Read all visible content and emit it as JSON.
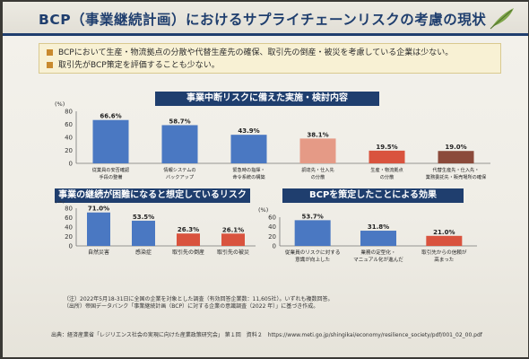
{
  "slide": {
    "title": "BCP（事業継続計画）におけるサプライチェーンリスクの考慮の現状",
    "bullets": [
      "BCPにおいて生産・物流拠点の分散や代替生産先の確保、取引先の倒産・被災を考慮している企業は少ない。",
      "取引先がBCP策定を評価することも少ない。"
    ],
    "notes": [
      "（注）2022年5月18-31日に全国の企業を対象とした調査（有効回答企業数：11,605社）。いずれも複数回答。",
      "（出所）帝国データバンク「事業継続計画（BCP）に対する企業の意識調査（2022 年）」に基づき作成。"
    ],
    "source": "出典：経済産業省「レジリエンス社会の実現に向けた産業政策研究会」 第１回　資料２　https://www.meti.go.jp/shingikai/economy/resilience_society/pdf/001_02_00.pdf"
  },
  "colors": {
    "navy": "#1f3e6e",
    "blue": "#4a78c2",
    "salmon": "#e59a86",
    "red": "#d9533e",
    "brown": "#8b4a3b",
    "gold": "#c98a2e"
  },
  "chart_data": [
    {
      "type": "bar",
      "title": "事業中断リスクに備えた実施・検討内容",
      "ylabel": "(%)",
      "ylim": [
        0,
        80
      ],
      "yticks": [
        0,
        20,
        40,
        60,
        80
      ],
      "categories": [
        [
          "従業員の安否確認",
          "手段の整備"
        ],
        [
          "情報システムの",
          "バックアップ"
        ],
        [
          "緊急時の指揮・",
          "命令系統の構築"
        ],
        [
          "調達先・仕入先",
          "の分散"
        ],
        [
          "生産・物流拠点",
          "の分散"
        ],
        [
          "代替生産先・仕入先・",
          "業務委託先・販売場所の確保"
        ]
      ],
      "values": [
        66.6,
        58.7,
        43.9,
        38.1,
        19.5,
        19.0
      ],
      "value_labels": [
        "66.6%",
        "58.7%",
        "43.9%",
        "38.1%",
        "19.5%",
        "19.0%"
      ],
      "bar_colors": [
        "#4a78c2",
        "#4a78c2",
        "#4a78c2",
        "#e59a86",
        "#d9533e",
        "#8b4a3b"
      ]
    },
    {
      "type": "bar",
      "title": "事業の継続が困難になると想定しているリスク",
      "ylabel": "(%)",
      "ylim": [
        0,
        80
      ],
      "yticks": [
        0,
        20,
        40,
        60,
        80
      ],
      "categories": [
        [
          "自然災害"
        ],
        [
          "感染症"
        ],
        [
          "取引先の倒産"
        ],
        [
          "取引先の被災"
        ]
      ],
      "values": [
        71.0,
        53.5,
        26.3,
        26.1
      ],
      "value_labels": [
        "71.0%",
        "53.5%",
        "26.3%",
        "26.1%"
      ],
      "bar_colors": [
        "#4a78c2",
        "#4a78c2",
        "#d9533e",
        "#d9533e"
      ]
    },
    {
      "type": "bar",
      "title": "BCPを策定したことによる効果",
      "ylabel": "(%)",
      "ylim": [
        0,
        60
      ],
      "yticks": [
        0,
        20,
        40,
        60
      ],
      "categories": [
        [
          "従業員のリスクに対する",
          "意識が向上した"
        ],
        [
          "業務の定型化・",
          "マニュアル化が進んだ"
        ],
        [
          "取引先からの信頼が",
          "高まった"
        ]
      ],
      "values": [
        53.7,
        31.8,
        21.0
      ],
      "value_labels": [
        "53.7%",
        "31.8%",
        "21.0%"
      ],
      "bar_colors": [
        "#4a78c2",
        "#4a78c2",
        "#d9533e"
      ]
    }
  ]
}
